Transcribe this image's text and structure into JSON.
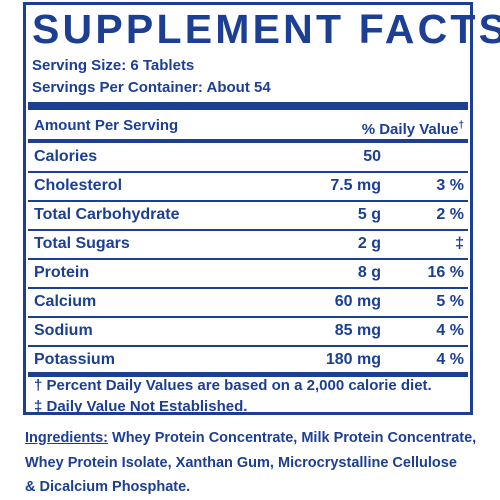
{
  "title": "SUPPLEMENT FACTS",
  "serving_size": "Serving Size: 6 Tablets",
  "servings_per_container": "Servings Per Container: About 54",
  "header": {
    "amount_label": "Amount Per Serving",
    "daily_value_label": "% Daily Value",
    "daily_value_mark": "†"
  },
  "nutrients": [
    {
      "name": "Calories",
      "amount": "50",
      "dv": ""
    },
    {
      "name": "Cholesterol",
      "amount": "7.5 mg",
      "dv": "3 %"
    },
    {
      "name": "Total Carbohydrate",
      "amount": "5 g",
      "dv": "2 %"
    },
    {
      "name": "Total Sugars",
      "amount": "2 g",
      "dv": "‡"
    },
    {
      "name": "Protein",
      "amount": "8 g",
      "dv": "16 %"
    },
    {
      "name": "Calcium",
      "amount": "60 mg",
      "dv": "5 %"
    },
    {
      "name": "Sodium",
      "amount": "85 mg",
      "dv": "4 %"
    },
    {
      "name": "Potassium",
      "amount": "180 mg",
      "dv": "4 %"
    }
  ],
  "footnotes": [
    "† Percent Daily Values are based on a 2,000 calorie diet.",
    "‡ Daily Value Not Established."
  ],
  "ingredients": {
    "label": "Ingredients:",
    "line1": " Whey Protein Concentrate, Milk Protein Concentrate,",
    "line2": "Whey Protein Isolate, Xanthan Gum, Microcrystalline Cellulose",
    "line3": "& Dicalcium Phosphate."
  },
  "colors": {
    "text": "#1c3f94",
    "background": "#ffffff"
  }
}
